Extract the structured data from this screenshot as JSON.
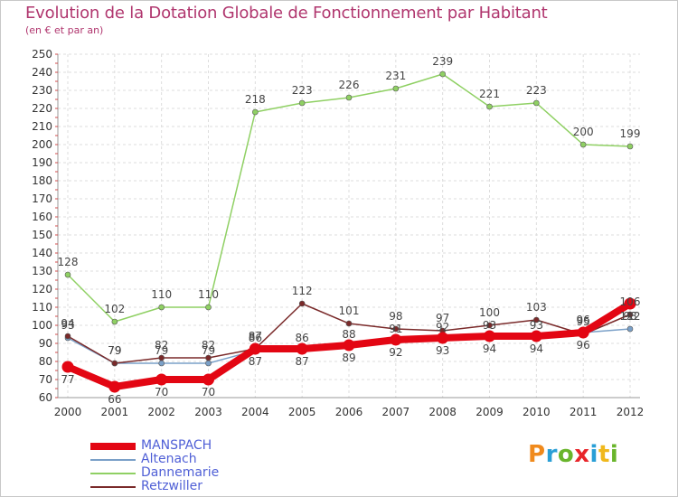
{
  "title": "Evolution de la Dotation Globale de Fonctionnement par Habitant",
  "subtitle": "(en € et par an)",
  "logo": "Proxiti",
  "chart_data": {
    "type": "line",
    "categories": [
      "2000",
      "2001",
      "2002",
      "2003",
      "2004",
      "2005",
      "2006",
      "2007",
      "2008",
      "2009",
      "2010",
      "2011",
      "2012"
    ],
    "ylim": [
      60,
      250
    ],
    "yticks": [
      60,
      70,
      80,
      90,
      100,
      110,
      120,
      130,
      140,
      150,
      160,
      170,
      180,
      190,
      200,
      210,
      220,
      230,
      240,
      250
    ],
    "grid": true,
    "legend_position": "bottom-left",
    "series": [
      {
        "name": "MANSPACH",
        "color": "#e30613",
        "thick": true,
        "values": [
          77,
          66,
          70,
          70,
          87,
          87,
          89,
          92,
          93,
          94,
          94,
          96,
          112
        ]
      },
      {
        "name": "Altenach",
        "color": "#7aa0c8",
        "thick": false,
        "values": [
          93,
          79,
          79,
          79,
          86,
          86,
          88,
          91,
          92,
          93,
          93,
          96,
          98
        ]
      },
      {
        "name": "Dannemarie",
        "color": "#8fd063",
        "thick": false,
        "values": [
          128,
          102,
          110,
          110,
          218,
          223,
          226,
          231,
          239,
          221,
          223,
          200,
          199
        ]
      },
      {
        "name": "Retzwiller",
        "color": "#7a2a2a",
        "thick": false,
        "values": [
          94,
          79,
          82,
          82,
          87,
          112,
          101,
          98,
          97,
          100,
          103,
          95,
          106
        ]
      }
    ]
  }
}
